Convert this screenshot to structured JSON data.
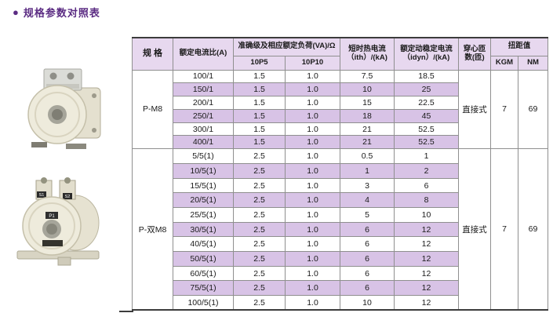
{
  "page": {
    "title": "规格参数对照表"
  },
  "icons": {
    "bullet": "●"
  },
  "colors": {
    "accent_purple": "#5b2c83",
    "header_bg": "#e7d8ef",
    "stripe_bg": "#d8c3e6",
    "border_thin": "#8f8f8f",
    "border_thick": "#3c3c3c"
  },
  "photos": {
    "pm8": {
      "alt": "P-M8 互感器照片"
    },
    "dual": {
      "alt": "P-双M8 互感器照片",
      "terminal_labels": [
        "S1",
        "S2"
      ],
      "body_label": "P1"
    }
  },
  "table": {
    "headers": {
      "spec": "规 格",
      "ratio": "额定电流比(A)",
      "accuracy_group": "准确级及相应额定负荷(VA)/Ω",
      "accuracy_cols": [
        "10P5",
        "10P10"
      ],
      "ith_line1": "短时热电流",
      "ith_line2": "（ith）/(kA)",
      "idyn_line1": "额定动稳定电流",
      "idyn_line2": "（idyn）/(kA)",
      "turns_line1": "穿心匝",
      "turns_line2": "数(匝)",
      "torque_group": "扭距值",
      "torque_cols": [
        "KGM",
        "NM"
      ]
    },
    "groups": [
      {
        "spec": "P-M8",
        "turns": "直接式",
        "kgm": "7",
        "nm": "69",
        "rows": [
          {
            "ratio": "100/1",
            "p5": "1.5",
            "p10": "1.0",
            "ith": "7.5",
            "idyn": "18.5"
          },
          {
            "ratio": "150/1",
            "p5": "1.5",
            "p10": "1.0",
            "ith": "10",
            "idyn": "25"
          },
          {
            "ratio": "200/1",
            "p5": "1.5",
            "p10": "1.0",
            "ith": "15",
            "idyn": "22.5"
          },
          {
            "ratio": "250/1",
            "p5": "1.5",
            "p10": "1.0",
            "ith": "18",
            "idyn": "45"
          },
          {
            "ratio": "300/1",
            "p5": "1.5",
            "p10": "1.0",
            "ith": "21",
            "idyn": "52.5"
          },
          {
            "ratio": "400/1",
            "p5": "1.5",
            "p10": "1.0",
            "ith": "21",
            "idyn": "52.5"
          }
        ]
      },
      {
        "spec": "P-双M8",
        "turns": "直接式",
        "kgm": "7",
        "nm": "69",
        "rows": [
          {
            "ratio": "5/5(1)",
            "p5": "2.5",
            "p10": "1.0",
            "ith": "0.5",
            "idyn": "1"
          },
          {
            "ratio": "10/5(1)",
            "p5": "2.5",
            "p10": "1.0",
            "ith": "1",
            "idyn": "2"
          },
          {
            "ratio": "15/5(1)",
            "p5": "2.5",
            "p10": "1.0",
            "ith": "3",
            "idyn": "6"
          },
          {
            "ratio": "20/5(1)",
            "p5": "2.5",
            "p10": "1.0",
            "ith": "4",
            "idyn": "8"
          },
          {
            "ratio": "25/5(1)",
            "p5": "2.5",
            "p10": "1.0",
            "ith": "5",
            "idyn": "10"
          },
          {
            "ratio": "30/5(1)",
            "p5": "2.5",
            "p10": "1.0",
            "ith": "6",
            "idyn": "12"
          },
          {
            "ratio": "40/5(1)",
            "p5": "2.5",
            "p10": "1.0",
            "ith": "6",
            "idyn": "12"
          },
          {
            "ratio": "50/5(1)",
            "p5": "2.5",
            "p10": "1.0",
            "ith": "6",
            "idyn": "12"
          },
          {
            "ratio": "60/5(1)",
            "p5": "2.5",
            "p10": "1.0",
            "ith": "6",
            "idyn": "12"
          },
          {
            "ratio": "75/5(1)",
            "p5": "2.5",
            "p10": "1.0",
            "ith": "6",
            "idyn": "12"
          },
          {
            "ratio": "100/5(1)",
            "p5": "2.5",
            "p10": "1.0",
            "ith": "10",
            "idyn": "12"
          }
        ]
      }
    ]
  }
}
